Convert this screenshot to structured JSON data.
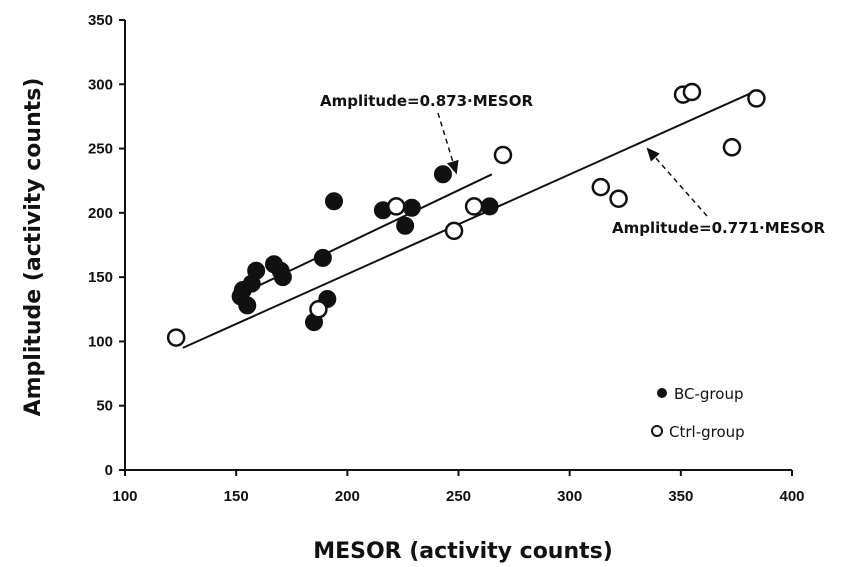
{
  "chart_data": {
    "type": "scatter",
    "xlabel": "MESOR (activity counts)",
    "ylabel": "Amplitude (activity counts)",
    "xlim": [
      100,
      400
    ],
    "ylim": [
      0,
      350
    ],
    "xticks": [
      100,
      150,
      200,
      250,
      300,
      350,
      400
    ],
    "yticks": [
      0,
      50,
      100,
      150,
      200,
      250,
      300,
      350
    ],
    "grid": false,
    "legend_position": "bottom-right",
    "series": [
      {
        "name": "BC-group",
        "marker": "filled-circle",
        "points": [
          [
            152,
            135
          ],
          [
            153,
            140
          ],
          [
            155,
            128
          ],
          [
            157,
            145
          ],
          [
            159,
            155
          ],
          [
            167,
            160
          ],
          [
            170,
            155
          ],
          [
            171,
            150
          ],
          [
            185,
            115
          ],
          [
            189,
            165
          ],
          [
            191,
            133
          ],
          [
            194,
            209
          ],
          [
            216,
            202
          ],
          [
            226,
            190
          ],
          [
            229,
            204
          ],
          [
            243,
            230
          ],
          [
            264,
            205
          ]
        ]
      },
      {
        "name": "Ctrl-group",
        "marker": "open-circle",
        "points": [
          [
            123,
            103
          ],
          [
            187,
            125
          ],
          [
            222,
            205
          ],
          [
            248,
            186
          ],
          [
            257,
            205
          ],
          [
            270,
            245
          ],
          [
            314,
            220
          ],
          [
            322,
            211
          ],
          [
            351,
            292
          ],
          [
            355,
            294
          ],
          [
            373,
            251
          ],
          [
            384,
            289
          ]
        ]
      }
    ],
    "fit_lines": [
      {
        "label": "Amplitude=0.873·MESOR",
        "x": [
          150,
          265
        ],
        "y": [
          135,
          230
        ]
      },
      {
        "label": "Amplitude=0.771·MESOR",
        "x": [
          126,
          384
        ],
        "y": [
          95,
          295
        ]
      }
    ],
    "annotations": [
      {
        "text": "Amplitude=0.873·MESOR",
        "arrow_to": [
          249,
          231
        ]
      },
      {
        "text": "Amplitude=0.771·MESOR",
        "arrow_to": [
          335,
          250
        ]
      }
    ]
  }
}
